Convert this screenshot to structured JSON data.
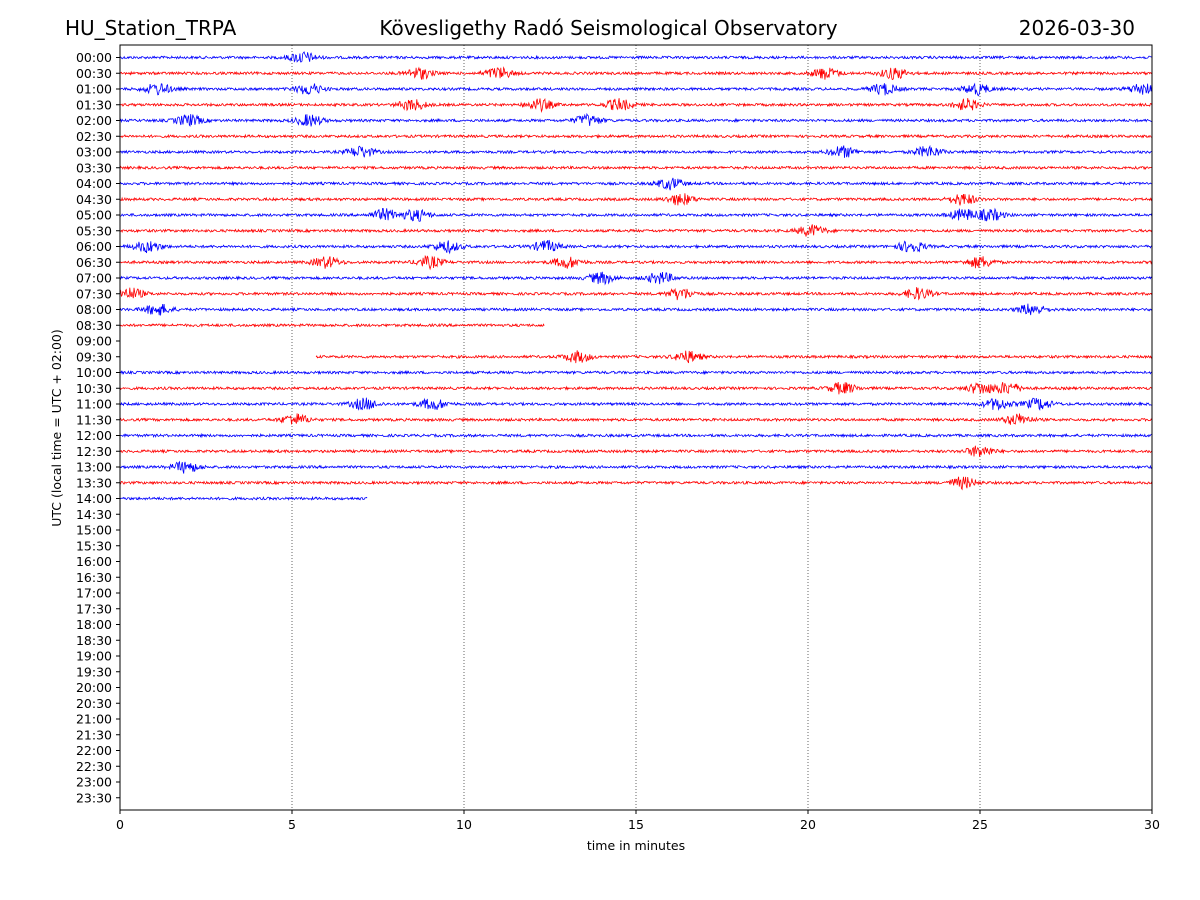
{
  "header": {
    "station": "HU_Station_TRPA",
    "observatory": "Kövesligethy Radó Seismological Observatory",
    "date": "2026-03-30"
  },
  "chart_data": {
    "type": "line",
    "title": "Kövesligethy Radó Seismological Observatory",
    "xlabel": "time in minutes",
    "ylabel": "UTC (local time = UTC + 02:00)",
    "xlim": [
      0,
      30
    ],
    "x_ticks": [
      0,
      5,
      10,
      15,
      20,
      25,
      30
    ],
    "grid": "vertical dotted lines at x ticks",
    "colors": {
      "even_rows": "#0000ff",
      "odd_rows": "#ff0000"
    },
    "rows": [
      {
        "label": "00:00",
        "x_start": 0,
        "x_end": 30,
        "events": [
          5.3
        ]
      },
      {
        "label": "00:30",
        "x_start": 0,
        "x_end": 30,
        "events": [
          8.7,
          11.0,
          20.5,
          22.5
        ]
      },
      {
        "label": "01:00",
        "x_start": 0,
        "x_end": 30,
        "events": [
          1.1,
          5.5,
          22.2,
          24.9,
          29.7
        ]
      },
      {
        "label": "01:30",
        "x_start": 0,
        "x_end": 30,
        "events": [
          8.5,
          12.2,
          14.5,
          24.6
        ]
      },
      {
        "label": "02:00",
        "x_start": 0,
        "x_end": 30,
        "events": [
          2.0,
          5.5,
          13.6
        ]
      },
      {
        "label": "02:30",
        "x_start": 0,
        "x_end": 30,
        "events": []
      },
      {
        "label": "03:00",
        "x_start": 0,
        "x_end": 30,
        "events": [
          7.0,
          21.0,
          23.5
        ]
      },
      {
        "label": "03:30",
        "x_start": 0,
        "x_end": 30,
        "events": []
      },
      {
        "label": "04:00",
        "x_start": 0,
        "x_end": 30,
        "events": [
          16.0
        ]
      },
      {
        "label": "04:30",
        "x_start": 0,
        "x_end": 30,
        "events": [
          16.3,
          24.5
        ]
      },
      {
        "label": "05:00",
        "x_start": 0,
        "x_end": 30,
        "events": [
          7.7,
          8.6,
          24.5,
          25.3
        ]
      },
      {
        "label": "05:30",
        "x_start": 0,
        "x_end": 30,
        "events": [
          20.1
        ]
      },
      {
        "label": "06:00",
        "x_start": 0,
        "x_end": 30,
        "events": [
          0.8,
          9.5,
          12.4,
          23.0
        ]
      },
      {
        "label": "06:30",
        "x_start": 0,
        "x_end": 30,
        "events": [
          6.0,
          9.0,
          13.0,
          25.0
        ]
      },
      {
        "label": "07:00",
        "x_start": 0,
        "x_end": 30,
        "events": [
          14.0,
          15.7
        ]
      },
      {
        "label": "07:30",
        "x_start": 0,
        "x_end": 30,
        "events": [
          0.3,
          16.3,
          23.2
        ]
      },
      {
        "label": "08:00",
        "x_start": 0,
        "x_end": 30,
        "events": [
          1.1,
          26.5
        ]
      },
      {
        "label": "08:30",
        "x_start": 0,
        "x_end": 12.35,
        "events": []
      },
      {
        "label": "09:00",
        "x_start": null,
        "x_end": null,
        "events": []
      },
      {
        "label": "09:30",
        "x_start": 5.7,
        "x_end": 30,
        "events": [
          13.3,
          16.5
        ]
      },
      {
        "label": "10:00",
        "x_start": 0,
        "x_end": 30,
        "events": []
      },
      {
        "label": "10:30",
        "x_start": 0,
        "x_end": 30,
        "events": [
          21.0,
          25.0,
          25.8
        ]
      },
      {
        "label": "11:00",
        "x_start": 0,
        "x_end": 30,
        "events": [
          7.1,
          9.1,
          25.5,
          26.7
        ]
      },
      {
        "label": "11:30",
        "x_start": 0,
        "x_end": 30,
        "events": [
          5.1,
          26.1
        ]
      },
      {
        "label": "12:00",
        "x_start": 0,
        "x_end": 30,
        "events": []
      },
      {
        "label": "12:30",
        "x_start": 0,
        "x_end": 30,
        "events": [
          25.0
        ]
      },
      {
        "label": "13:00",
        "x_start": 0,
        "x_end": 30,
        "events": [
          1.9
        ]
      },
      {
        "label": "13:30",
        "x_start": 0,
        "x_end": 30,
        "events": [
          24.5
        ]
      },
      {
        "label": "14:00",
        "x_start": 0,
        "x_end": 7.2,
        "events": []
      },
      {
        "label": "14:30",
        "x_start": null,
        "x_end": null,
        "events": []
      },
      {
        "label": "15:00",
        "x_start": null,
        "x_end": null,
        "events": []
      },
      {
        "label": "15:30",
        "x_start": null,
        "x_end": null,
        "events": []
      },
      {
        "label": "16:00",
        "x_start": null,
        "x_end": null,
        "events": []
      },
      {
        "label": "16:30",
        "x_start": null,
        "x_end": null,
        "events": []
      },
      {
        "label": "17:00",
        "x_start": null,
        "x_end": null,
        "events": []
      },
      {
        "label": "17:30",
        "x_start": null,
        "x_end": null,
        "events": []
      },
      {
        "label": "18:00",
        "x_start": null,
        "x_end": null,
        "events": []
      },
      {
        "label": "18:30",
        "x_start": null,
        "x_end": null,
        "events": []
      },
      {
        "label": "19:00",
        "x_start": null,
        "x_end": null,
        "events": []
      },
      {
        "label": "19:30",
        "x_start": null,
        "x_end": null,
        "events": []
      },
      {
        "label": "20:00",
        "x_start": null,
        "x_end": null,
        "events": []
      },
      {
        "label": "20:30",
        "x_start": null,
        "x_end": null,
        "events": []
      },
      {
        "label": "21:00",
        "x_start": null,
        "x_end": null,
        "events": []
      },
      {
        "label": "21:30",
        "x_start": null,
        "x_end": null,
        "events": []
      },
      {
        "label": "22:00",
        "x_start": null,
        "x_end": null,
        "events": []
      },
      {
        "label": "22:30",
        "x_start": null,
        "x_end": null,
        "events": []
      },
      {
        "label": "23:00",
        "x_start": null,
        "x_end": null,
        "events": []
      },
      {
        "label": "23:30",
        "x_start": null,
        "x_end": null,
        "events": []
      }
    ]
  }
}
